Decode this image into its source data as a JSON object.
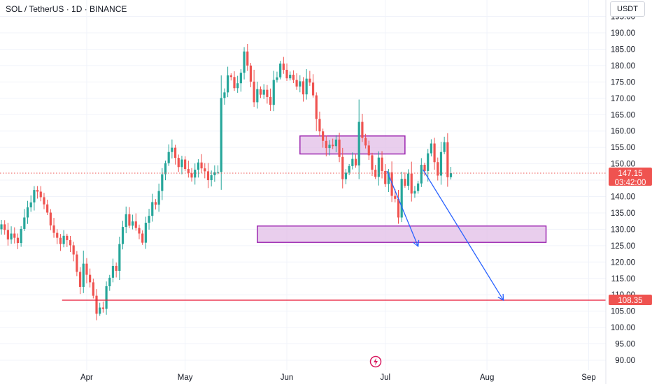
{
  "header": {
    "symbol_title": "SOL / TetherUS · 1D · BINANCE",
    "currency": "USDT"
  },
  "price_labels": {
    "current_price": "147.15",
    "countdown": "03:42:00",
    "target_price": "108.35"
  },
  "colors": {
    "up": "#26a69a",
    "down": "#ef5350",
    "zone_fill": "#e1bee7",
    "zone_border": "#9c27b0",
    "target_line": "#e91e3a",
    "arrow": "#2962ff",
    "current_price_line": "#ef5350"
  },
  "chart_data": {
    "type": "candlestick",
    "symbol": "SOL / TetherUS",
    "interval": "1D",
    "exchange": "BINANCE",
    "y_axis": {
      "position": "right",
      "ticks": [
        "90.00",
        "95.00",
        "100.00",
        "105.00",
        "110.00",
        "115.00",
        "120.00",
        "125.00",
        "130.00",
        "135.00",
        "140.00",
        "145.00",
        "150.00",
        "155.00",
        "160.00",
        "165.00",
        "170.00",
        "175.00",
        "180.00",
        "185.00",
        "190.00",
        "195.00"
      ],
      "range": [
        88,
        199
      ]
    },
    "x_axis": {
      "ticks": [
        "Apr",
        "May",
        "Jun",
        "Jul",
        "Aug",
        "Sep"
      ],
      "tick_dates": [
        "2025-04-01",
        "2025-05-01",
        "2025-06-01",
        "2025-07-01",
        "2025-08-01",
        "2025-09-01"
      ]
    },
    "grid": true,
    "current_price": 147.15,
    "closes": [
      131.5,
      129.8,
      126.9,
      128.7,
      127.4,
      125.8,
      130.1,
      133.6,
      136.7,
      138.2,
      142.0,
      141.5,
      139.8,
      137.6,
      135.1,
      131.2,
      128.9,
      127.4,
      125.5,
      128.0,
      126.7,
      125.1,
      122.3,
      117.0,
      112.4,
      119.5,
      116.1,
      113.8,
      109.7,
      104.2,
      106.1,
      105.7,
      112.6,
      115.2,
      118.8,
      117.3,
      125.5,
      130.7,
      134.6,
      131.1,
      132.4,
      130.4,
      128.7,
      125.9,
      132.0,
      134.1,
      138.3,
      137.5,
      141.7,
      146.8,
      150.2,
      153.6,
      154.9,
      151.8,
      149.0,
      151.3,
      148.4,
      147.1,
      145.8,
      148.2,
      150.4,
      148.6,
      147.7,
      145.0,
      146.5,
      147.4,
      147.5,
      170.1,
      171.8,
      177.0,
      176.5,
      173.1,
      174.6,
      177.8,
      184.3,
      180.0,
      175.1,
      168.8,
      172.8,
      171.1,
      172.6,
      170.4,
      168.0,
      175.6,
      176.4,
      180.6,
      178.7,
      176.1,
      177.2,
      175.6,
      173.6,
      175.2,
      171.2,
      176.0,
      174.8,
      170.9,
      163.7,
      159.9,
      157.0,
      154.8,
      155.8,
      155.4,
      157.4,
      152.1,
      145.3,
      147.3,
      149.3,
      151.5,
      149.5,
      162.8,
      157.9,
      155.6,
      152.6,
      148.2,
      146.0,
      151.9,
      147.8,
      143.8,
      147.4,
      140.2,
      139.3,
      133.6,
      145.4,
      143.3,
      147.0,
      140.9,
      141.7,
      144.0,
      149.7,
      147.8,
      153.2,
      156.2,
      150.5,
      146.4,
      153.6,
      156.6,
      145.9,
      147.15
    ],
    "support_zone": [
      126,
      131
    ],
    "resistance_zone": [
      153,
      158.5
    ],
    "target_level": 108.35,
    "projection_arrows": 2
  }
}
